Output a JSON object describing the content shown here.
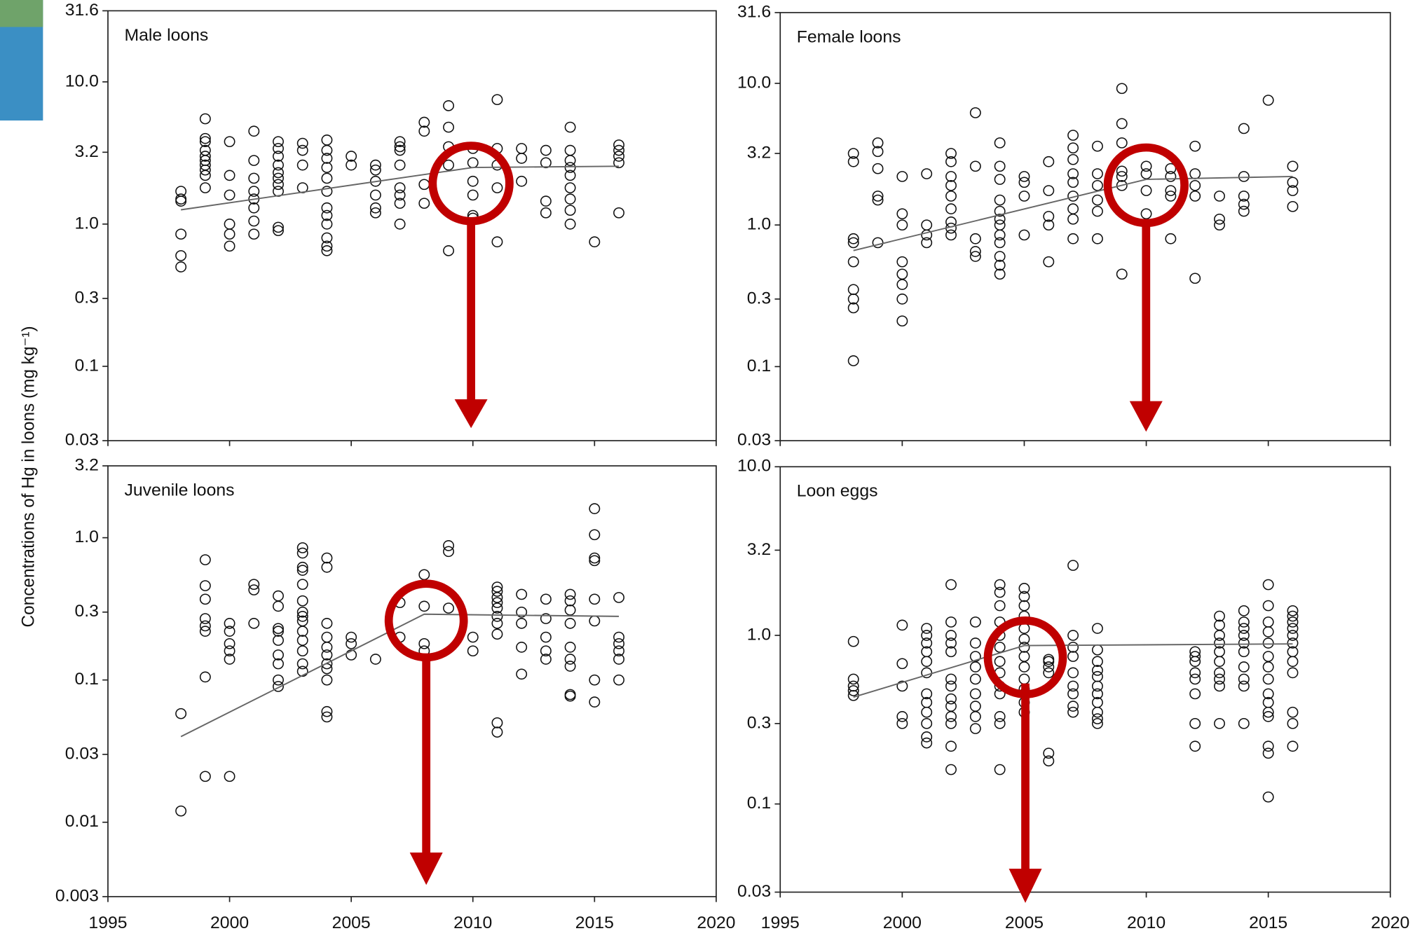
{
  "ylabel": "Concentrations of Hg in loons (mg kg⁻¹)",
  "chart_data": [
    {
      "type": "scatter",
      "title": "Male loons",
      "log_y": true,
      "xtick_labels": false,
      "xlim": [
        1995,
        2020
      ],
      "xticks": [
        1995,
        2000,
        2005,
        2010,
        2015,
        2020
      ],
      "ylim": [
        0.03,
        31.6
      ],
      "yticks": [
        31.6,
        {
          "value": 10,
          "label": "10.0"
        },
        3.2,
        {
          "value": 1,
          "label": "1.0"
        },
        0.3,
        0.1,
        0.03
      ],
      "x": [
        1998,
        1998,
        1998,
        1998,
        1998,
        1998,
        1999,
        1999,
        1999,
        1999,
        1999,
        1999,
        1999,
        1999,
        1999,
        1999,
        2000,
        2000,
        2000,
        2000,
        2000,
        2000,
        2001,
        2001,
        2001,
        2001,
        2001,
        2001,
        2001,
        2001,
        2002,
        2002,
        2002,
        2002,
        2002,
        2002,
        2002,
        2002,
        2002,
        2002,
        2003,
        2003,
        2003,
        2003,
        2004,
        2004,
        2004,
        2004,
        2004,
        2004,
        2004,
        2004,
        2004,
        2004,
        2004,
        2004,
        2005,
        2005,
        2006,
        2006,
        2006,
        2006,
        2006,
        2006,
        2007,
        2007,
        2007,
        2007,
        2007,
        2007,
        2007,
        2007,
        2008,
        2008,
        2008,
        2008,
        2009,
        2009,
        2009,
        2009,
        2009,
        2010,
        2010,
        2010,
        2010,
        2010,
        2010,
        2011,
        2011,
        2011,
        2011,
        2011,
        2012,
        2012,
        2012,
        2013,
        2013,
        2013,
        2013,
        2014,
        2014,
        2014,
        2014,
        2014,
        2014,
        2014,
        2014,
        2014,
        2015,
        2016,
        2016,
        2016,
        2016,
        2016
      ],
      "y": [
        1.7,
        1.5,
        1.45,
        0.85,
        0.6,
        0.5,
        5.5,
        4.0,
        3.8,
        3.3,
        3.0,
        2.8,
        2.6,
        2.4,
        2.2,
        1.8,
        3.8,
        2.2,
        1.6,
        1.0,
        0.85,
        0.7,
        4.5,
        2.8,
        2.1,
        1.7,
        1.5,
        1.3,
        1.05,
        0.85,
        3.8,
        3.4,
        3.0,
        2.6,
        2.3,
        2.1,
        1.9,
        1.7,
        0.95,
        0.9,
        3.7,
        3.3,
        2.6,
        1.8,
        3.9,
        3.3,
        2.9,
        2.5,
        2.1,
        1.7,
        1.3,
        1.15,
        1.0,
        0.8,
        0.7,
        0.65,
        3.0,
        2.6,
        2.6,
        2.4,
        2.0,
        1.6,
        1.3,
        1.2,
        3.8,
        3.5,
        3.3,
        2.6,
        1.8,
        1.6,
        1.4,
        1.0,
        5.2,
        4.5,
        1.9,
        1.4,
        6.8,
        4.8,
        3.5,
        2.6,
        0.65,
        3.4,
        2.7,
        2.0,
        1.6,
        1.15,
        1.1,
        7.5,
        3.4,
        2.6,
        1.8,
        0.75,
        3.4,
        2.9,
        2.0,
        3.3,
        2.7,
        1.45,
        1.2,
        4.8,
        3.3,
        2.8,
        2.5,
        2.2,
        1.8,
        1.5,
        1.25,
        1.0,
        0.75,
        3.6,
        3.3,
        3.0,
        2.7,
        1.2
      ],
      "trend": {
        "x": [
          1998,
          2010,
          2016
        ],
        "y": [
          1.26,
          2.5,
          2.55
        ]
      }
    },
    {
      "type": "scatter",
      "title": "Female loons",
      "log_y": true,
      "xtick_labels": false,
      "xlim": [
        1995,
        2020
      ],
      "xticks": [
        1995,
        2000,
        2005,
        2010,
        2015,
        2020
      ],
      "ylim": [
        0.03,
        31.6
      ],
      "yticks": [
        31.6,
        {
          "value": 10,
          "label": "10.0"
        },
        3.2,
        {
          "value": 1,
          "label": "1.0"
        },
        0.3,
        0.1,
        0.03
      ],
      "x": [
        1998,
        1998,
        1998,
        1998,
        1998,
        1998,
        1998,
        1998,
        1998,
        1999,
        1999,
        1999,
        1999,
        1999,
        1999,
        2000,
        2000,
        2000,
        2000,
        2000,
        2000,
        2000,
        2000,
        2001,
        2001,
        2001,
        2001,
        2002,
        2002,
        2002,
        2002,
        2002,
        2002,
        2002,
        2002,
        2002,
        2003,
        2003,
        2003,
        2003,
        2003,
        2004,
        2004,
        2004,
        2004,
        2004,
        2004,
        2004,
        2004,
        2004,
        2004,
        2004,
        2004,
        2005,
        2005,
        2005,
        2005,
        2006,
        2006,
        2006,
        2006,
        2006,
        2007,
        2007,
        2007,
        2007,
        2007,
        2007,
        2007,
        2007,
        2007,
        2008,
        2008,
        2008,
        2008,
        2008,
        2008,
        2009,
        2009,
        2009,
        2009,
        2009,
        2009,
        2009,
        2010,
        2010,
        2010,
        2010,
        2011,
        2011,
        2011,
        2011,
        2011,
        2012,
        2012,
        2012,
        2012,
        2012,
        2013,
        2013,
        2013,
        2014,
        2014,
        2014,
        2014,
        2014,
        2015,
        2016,
        2016,
        2016,
        2016
      ],
      "y": [
        3.2,
        2.8,
        0.8,
        0.75,
        0.55,
        0.35,
        0.3,
        0.26,
        0.11,
        3.8,
        3.3,
        2.5,
        1.6,
        1.5,
        0.75,
        2.2,
        1.2,
        1.0,
        0.55,
        0.45,
        0.38,
        0.3,
        0.21,
        2.3,
        1.0,
        0.85,
        0.75,
        3.2,
        2.8,
        2.2,
        1.9,
        1.6,
        1.3,
        1.05,
        0.95,
        0.85,
        6.2,
        2.6,
        0.8,
        0.65,
        0.6,
        3.8,
        2.6,
        2.1,
        1.5,
        1.25,
        1.1,
        1.0,
        0.85,
        0.75,
        0.6,
        0.52,
        0.45,
        2.2,
        2.0,
        1.6,
        0.85,
        2.8,
        1.75,
        1.15,
        1.0,
        0.55,
        4.3,
        3.5,
        2.9,
        2.3,
        2.0,
        1.6,
        1.3,
        1.1,
        0.8,
        3.6,
        2.3,
        1.9,
        1.5,
        1.25,
        0.8,
        9.2,
        5.2,
        3.8,
        2.4,
        2.2,
        1.9,
        0.45,
        2.6,
        2.3,
        1.75,
        1.2,
        2.5,
        2.2,
        1.75,
        1.6,
        0.8,
        3.6,
        2.3,
        1.9,
        1.6,
        0.42,
        1.6,
        1.1,
        1.0,
        4.8,
        2.2,
        1.6,
        1.4,
        1.25,
        7.6,
        2.6,
        2.0,
        1.75,
        1.35
      ],
      "trend": {
        "x": [
          1998,
          2010,
          2016
        ],
        "y": [
          0.66,
          2.1,
          2.2
        ]
      }
    },
    {
      "type": "scatter",
      "title": "Juvenile loons",
      "log_y": true,
      "xtick_labels": true,
      "xlim": [
        1995,
        2020
      ],
      "xticks": [
        1995,
        2000,
        2005,
        2010,
        2015,
        2020
      ],
      "ylim": [
        0.003,
        3.2
      ],
      "yticks": [
        3.2,
        {
          "value": 1,
          "label": "1.0"
        },
        0.3,
        0.1,
        0.03,
        0.01,
        0.003
      ],
      "x": [
        1998,
        1998,
        1999,
        1999,
        1999,
        1999,
        1999,
        1999,
        1999,
        1999,
        2000,
        2000,
        2000,
        2000,
        2000,
        2000,
        2001,
        2001,
        2001,
        2002,
        2002,
        2002,
        2002,
        2002,
        2002,
        2002,
        2002,
        2002,
        2003,
        2003,
        2003,
        2003,
        2003,
        2003,
        2003,
        2003,
        2003,
        2003,
        2003,
        2003,
        2003,
        2003,
        2004,
        2004,
        2004,
        2004,
        2004,
        2004,
        2004,
        2004,
        2004,
        2004,
        2004,
        2005,
        2005,
        2005,
        2006,
        2007,
        2007,
        2008,
        2008,
        2008,
        2008,
        2009,
        2009,
        2009,
        2010,
        2010,
        2011,
        2011,
        2011,
        2011,
        2011,
        2011,
        2011,
        2011,
        2011,
        2011,
        2012,
        2012,
        2012,
        2012,
        2012,
        2013,
        2013,
        2013,
        2013,
        2013,
        2014,
        2014,
        2014,
        2014,
        2014,
        2014,
        2014,
        2014,
        2014,
        2015,
        2015,
        2015,
        2015,
        2015,
        2015,
        2015,
        2015,
        2016,
        2016,
        2016,
        2016,
        2016,
        2016
      ],
      "y": [
        0.058,
        0.012,
        0.7,
        0.46,
        0.37,
        0.27,
        0.24,
        0.22,
        0.105,
        0.021,
        0.25,
        0.22,
        0.18,
        0.16,
        0.14,
        0.021,
        0.47,
        0.43,
        0.25,
        0.39,
        0.33,
        0.23,
        0.22,
        0.19,
        0.15,
        0.13,
        0.1,
        0.09,
        0.85,
        0.78,
        0.62,
        0.59,
        0.47,
        0.36,
        0.3,
        0.28,
        0.26,
        0.22,
        0.19,
        0.16,
        0.13,
        0.115,
        0.72,
        0.62,
        0.25,
        0.2,
        0.17,
        0.15,
        0.13,
        0.12,
        0.1,
        0.06,
        0.055,
        0.2,
        0.18,
        0.15,
        0.14,
        0.35,
        0.2,
        0.55,
        0.33,
        0.18,
        0.16,
        0.88,
        0.8,
        0.32,
        0.2,
        0.16,
        0.45,
        0.42,
        0.38,
        0.35,
        0.32,
        0.28,
        0.25,
        0.21,
        0.05,
        0.043,
        0.4,
        0.3,
        0.25,
        0.17,
        0.11,
        0.37,
        0.27,
        0.2,
        0.16,
        0.14,
        0.4,
        0.36,
        0.31,
        0.25,
        0.17,
        0.14,
        0.125,
        0.079,
        0.077,
        1.6,
        1.05,
        0.72,
        0.69,
        0.37,
        0.26,
        0.1,
        0.07,
        0.38,
        0.2,
        0.18,
        0.16,
        0.14,
        0.1
      ],
      "trend": {
        "x": [
          1998,
          2008,
          2016
        ],
        "y": [
          0.04,
          0.29,
          0.28
        ]
      }
    },
    {
      "type": "scatter",
      "title": "Loon eggs",
      "log_y": true,
      "xtick_labels": true,
      "xlim": [
        1995,
        2020
      ],
      "xticks": [
        1995,
        2000,
        2005,
        2010,
        2015,
        2020
      ],
      "ylim": [
        0.03,
        10
      ],
      "yticks": [
        {
          "value": 10,
          "label": "10.0"
        },
        3.2,
        {
          "value": 1,
          "label": "1.0"
        },
        0.3,
        0.1,
        0.03
      ],
      "x": [
        1998,
        1998,
        1998,
        1998,
        1998,
        2000,
        2000,
        2000,
        2000,
        2000,
        2001,
        2001,
        2001,
        2001,
        2001,
        2001,
        2001,
        2001,
        2001,
        2001,
        2001,
        2001,
        2002,
        2002,
        2002,
        2002,
        2002,
        2002,
        2002,
        2002,
        2002,
        2002,
        2002,
        2002,
        2002,
        2003,
        2003,
        2003,
        2003,
        2003,
        2003,
        2003,
        2003,
        2003,
        2004,
        2004,
        2004,
        2004,
        2004,
        2004,
        2004,
        2004,
        2004,
        2004,
        2004,
        2004,
        2004,
        2005,
        2005,
        2005,
        2005,
        2005,
        2005,
        2005,
        2005,
        2005,
        2005,
        2005,
        2005,
        2005,
        2005,
        2006,
        2006,
        2006,
        2006,
        2006,
        2006,
        2007,
        2007,
        2007,
        2007,
        2007,
        2007,
        2007,
        2007,
        2007,
        2008,
        2008,
        2008,
        2008,
        2008,
        2008,
        2008,
        2008,
        2008,
        2008,
        2008,
        2012,
        2012,
        2012,
        2012,
        2012,
        2012,
        2012,
        2012,
        2013,
        2013,
        2013,
        2013,
        2013,
        2013,
        2013,
        2013,
        2013,
        2013,
        2014,
        2014,
        2014,
        2014,
        2014,
        2014,
        2014,
        2014,
        2014,
        2014,
        2015,
        2015,
        2015,
        2015,
        2015,
        2015,
        2015,
        2015,
        2015,
        2015,
        2015,
        2015,
        2015,
        2015,
        2015,
        2016,
        2016,
        2016,
        2016,
        2016,
        2016,
        2016,
        2016,
        2016,
        2016,
        2016,
        2016
      ],
      "y": [
        0.92,
        0.55,
        0.5,
        0.47,
        0.44,
        1.15,
        0.68,
        0.5,
        0.33,
        0.3,
        1.1,
        1.0,
        0.9,
        0.8,
        0.7,
        0.6,
        0.45,
        0.4,
        0.35,
        0.3,
        0.25,
        0.23,
        2.0,
        1.2,
        1.0,
        0.9,
        0.8,
        0.55,
        0.5,
        0.42,
        0.38,
        0.33,
        0.3,
        0.22,
        0.16,
        1.2,
        0.9,
        0.75,
        0.65,
        0.55,
        0.45,
        0.38,
        0.33,
        0.28,
        2.0,
        1.8,
        1.5,
        1.2,
        1.0,
        0.85,
        0.7,
        0.6,
        0.5,
        0.45,
        0.33,
        0.3,
        0.16,
        1.9,
        1.7,
        1.5,
        1.3,
        1.1,
        0.95,
        0.85,
        0.75,
        0.65,
        0.55,
        0.48,
        0.45,
        0.4,
        0.35,
        0.72,
        0.7,
        0.65,
        0.6,
        0.2,
        0.18,
        2.6,
        1.0,
        0.85,
        0.75,
        0.6,
        0.5,
        0.45,
        0.38,
        0.35,
        1.1,
        0.82,
        0.7,
        0.62,
        0.57,
        0.5,
        0.45,
        0.4,
        0.35,
        0.32,
        0.3,
        0.8,
        0.75,
        0.7,
        0.6,
        0.55,
        0.45,
        0.3,
        0.22,
        1.3,
        1.15,
        1.0,
        0.9,
        0.8,
        0.7,
        0.6,
        0.55,
        0.5,
        0.3,
        1.4,
        1.2,
        1.1,
        1.0,
        0.9,
        0.8,
        0.65,
        0.55,
        0.5,
        0.3,
        2.0,
        1.5,
        1.2,
        1.05,
        0.9,
        0.75,
        0.65,
        0.55,
        0.45,
        0.4,
        0.35,
        0.33,
        0.22,
        0.2,
        0.11,
        1.4,
        1.3,
        1.2,
        1.1,
        1.0,
        0.9,
        0.8,
        0.7,
        0.6,
        0.35,
        0.3,
        0.22
      ],
      "trend": {
        "x": [
          1998,
          2005,
          2016
        ],
        "y": [
          0.43,
          0.87,
          0.89
        ]
      }
    }
  ]
}
